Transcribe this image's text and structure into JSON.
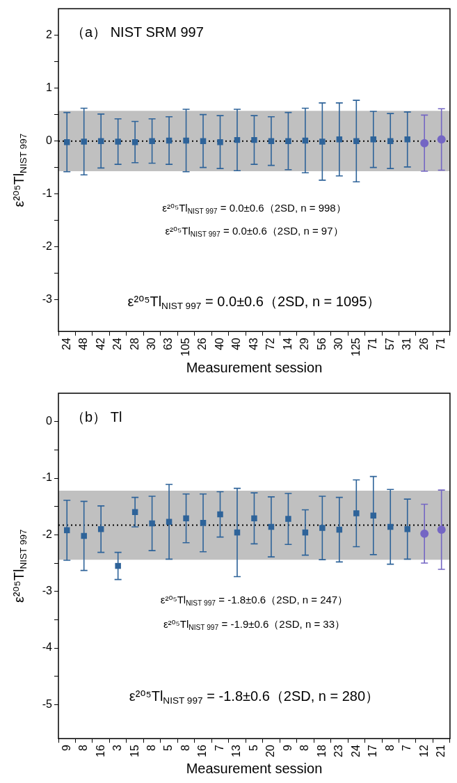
{
  "chart_data": [
    {
      "type": "scatter",
      "title": "（a） NIST SRM 997",
      "xlabel": "Measurement session",
      "ylabel": "ε²⁰⁵Tl$_{NIST 997}$",
      "categories": [
        "24",
        "48",
        "42",
        "24",
        "28",
        "30",
        "63",
        "105",
        "26",
        "40",
        "40",
        "43",
        "72",
        "14",
        "29",
        "56",
        "30",
        "125",
        "71",
        "57",
        "31",
        "26",
        "71"
      ],
      "ylim": [
        -3.6,
        2.5
      ],
      "yticks": [
        -3,
        {
          "value": -2.5,
          "label": null
        },
        -2,
        {
          "value": -1.5,
          "label": null
        },
        -1,
        {
          "value": -0.5,
          "label": null
        },
        0,
        {
          "value": 0.5,
          "label": null
        },
        1,
        {
          "value": 1.5,
          "label": null
        },
        2
      ],
      "series": [
        {
          "color": "#2e6399",
          "marker": "square",
          "values": [
            -0.02,
            -0.01,
            0,
            -0.01,
            -0.02,
            0,
            0.01,
            0.01,
            0,
            -0.02,
            0.02,
            0.02,
            0,
            0,
            0.01,
            -0.01,
            0.03,
            0,
            0.03,
            0,
            0.03,
            null,
            null
          ],
          "errors": [
            0.56,
            0.63,
            0.51,
            0.43,
            0.39,
            0.42,
            0.45,
            0.59,
            0.5,
            0.5,
            0.58,
            0.46,
            0.46,
            0.54,
            0.61,
            0.73,
            0.69,
            0.77,
            0.53,
            0.52,
            0.52,
            null,
            null
          ]
        },
        {
          "color": "#7466c4",
          "marker": "circle",
          "values": [
            null,
            null,
            null,
            null,
            null,
            null,
            null,
            null,
            null,
            null,
            null,
            null,
            null,
            null,
            null,
            null,
            null,
            null,
            null,
            null,
            null,
            -0.04,
            0.03
          ],
          "errors": [
            null,
            null,
            null,
            null,
            null,
            null,
            null,
            null,
            null,
            null,
            null,
            null,
            null,
            null,
            null,
            null,
            null,
            null,
            null,
            null,
            null,
            0.53,
            0.58
          ]
        }
      ],
      "ref_lines": [
        {
          "axis": "y",
          "value": 0,
          "color": "#000000",
          "line_style": "dotted"
        }
      ],
      "bands": [
        {
          "axis": "y",
          "from": -0.57,
          "to": 0.57,
          "color": "#c0c0c0"
        }
      ],
      "annotations": [
        "ε²⁰⁵Tl$_{NIST 997}$ = 0.0±0.6（2SD, n = 998）",
        "ε²⁰⁵Tl$_{NIST 997}$ = 0.0±0.6（2SD, n = 97）",
        "ε²⁰⁵Tl$_{NIST 997}$ = 0.0±0.6（2SD, n = 1095）"
      ]
    },
    {
      "type": "scatter",
      "title": "（b） Tl",
      "xlabel": "Measurement session",
      "ylabel": "ε²⁰⁵Tl$_{NIST 997}$",
      "categories": [
        "9",
        "8",
        "16",
        "3",
        "15",
        "8",
        "5",
        "8",
        "16",
        "7",
        "13",
        "5",
        "20",
        "9",
        "8",
        "18",
        "23",
        "24",
        "17",
        "8",
        "7",
        "12",
        "21"
      ],
      "ylim": [
        -5.6,
        0.5
      ],
      "yticks": [
        -5,
        {
          "value": -4.5,
          "label": null
        },
        -4,
        {
          "value": -3.5,
          "label": null
        },
        -3,
        {
          "value": -2.5,
          "label": null
        },
        -2,
        {
          "value": -1.5,
          "label": null
        },
        -1,
        {
          "value": -0.5,
          "label": null
        },
        0
      ],
      "series": [
        {
          "color": "#2e6399",
          "marker": "square",
          "values": [
            -1.92,
            -2.02,
            -1.9,
            -2.55,
            -1.6,
            -1.8,
            -1.77,
            -1.71,
            -1.79,
            -1.64,
            -1.96,
            -1.71,
            -1.86,
            -1.72,
            -1.96,
            -1.88,
            -1.91,
            -1.62,
            -1.66,
            -1.86,
            -1.9,
            null,
            null
          ],
          "errors": [
            0.53,
            0.61,
            0.41,
            0.24,
            0.26,
            0.48,
            0.66,
            0.43,
            0.51,
            0.4,
            0.78,
            0.45,
            0.53,
            0.45,
            0.4,
            0.56,
            0.57,
            0.59,
            0.69,
            0.66,
            0.53,
            null,
            null
          ]
        },
        {
          "color": "#7466c4",
          "marker": "circle",
          "values": [
            null,
            null,
            null,
            null,
            null,
            null,
            null,
            null,
            null,
            null,
            null,
            null,
            null,
            null,
            null,
            null,
            null,
            null,
            null,
            null,
            null,
            -1.98,
            -1.91
          ],
          "errors": [
            null,
            null,
            null,
            null,
            null,
            null,
            null,
            null,
            null,
            null,
            null,
            null,
            null,
            null,
            null,
            null,
            null,
            null,
            null,
            null,
            null,
            0.52,
            0.7
          ]
        }
      ],
      "ref_lines": [
        {
          "axis": "y",
          "value": -1.83,
          "color": "#000000",
          "line_style": "dotted"
        }
      ],
      "bands": [
        {
          "axis": "y",
          "from": -2.44,
          "to": -1.22,
          "color": "#c0c0c0"
        }
      ],
      "annotations": [
        "ε²⁰⁵Tl$_{NIST 997}$ = -1.8±0.6（2SD, n = 247）",
        "ε²⁰⁵Tl$_{NIST 997}$ = -1.9±0.6（2SD, n = 33）",
        "ε²⁰⁵Tl$_{NIST 997}$ = -1.8±0.6（2SD, n = 280）"
      ]
    }
  ]
}
